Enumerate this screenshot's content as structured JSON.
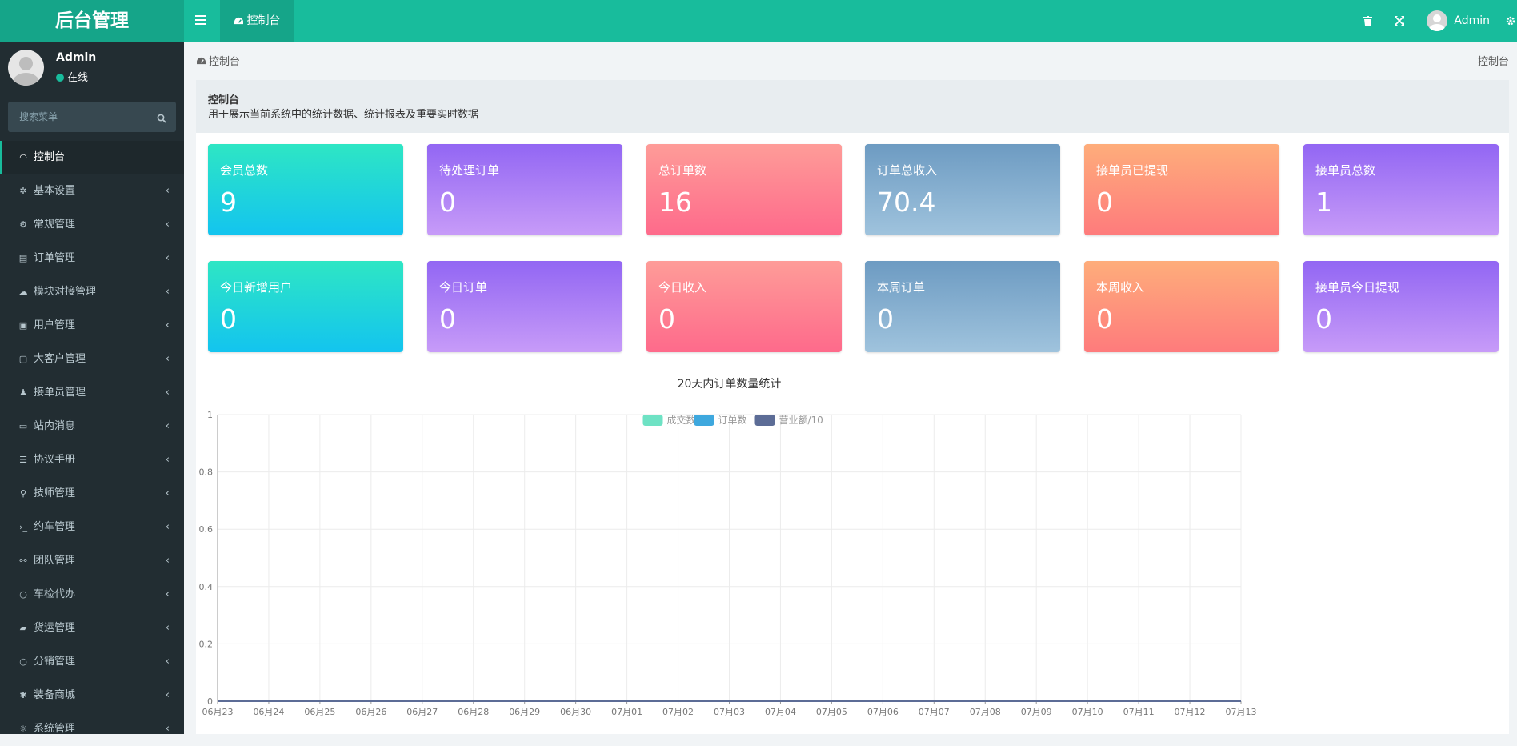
{
  "app": {
    "title": "后台管理"
  },
  "topbar": {
    "tab_label": "控制台",
    "user_name": "Admin"
  },
  "sidebar": {
    "user": {
      "name": "Admin",
      "status": "在线"
    },
    "search_placeholder": "搜索菜单",
    "items": [
      {
        "label": "控制台",
        "icon": "dashboard-icon",
        "active": true
      },
      {
        "label": "基本设置",
        "icon": "gear-icon"
      },
      {
        "label": "常规管理",
        "icon": "cogs-icon"
      },
      {
        "label": "订单管理",
        "icon": "book-icon"
      },
      {
        "label": "模块对接管理",
        "icon": "cloud-icon"
      },
      {
        "label": "用户管理",
        "icon": "user-card-icon"
      },
      {
        "label": "大客户管理",
        "icon": "portrait-icon"
      },
      {
        "label": "接单员管理",
        "icon": "users-icon"
      },
      {
        "label": "站内消息",
        "icon": "message-icon"
      },
      {
        "label": "协议手册",
        "icon": "list-icon"
      },
      {
        "label": "技师管理",
        "icon": "walker-icon"
      },
      {
        "label": "约车管理",
        "icon": "terminal-icon"
      },
      {
        "label": "团队管理",
        "icon": "handshake-icon"
      },
      {
        "label": "车检代办",
        "icon": "circle-icon"
      },
      {
        "label": "货运管理",
        "icon": "truck-icon"
      },
      {
        "label": "分销管理",
        "icon": "circle-icon"
      },
      {
        "label": "装备商城",
        "icon": "bug-icon"
      },
      {
        "label": "系统管理",
        "icon": "sun-icon"
      }
    ]
  },
  "breadcrumb": {
    "left": "控制台",
    "right": "控制台"
  },
  "panel": {
    "title": "控制台",
    "description": "用于展示当前系统中的统计数据、统计报表及重要实时数据"
  },
  "stats_row1": [
    {
      "label": "会员总数",
      "value": "9",
      "color": "#13c4ef"
    },
    {
      "label": "待处理订单",
      "value": "0",
      "color": "#9266f3"
    },
    {
      "label": "总订单数",
      "value": "16",
      "color": "#fe6a8b"
    },
    {
      "label": "订单总收入",
      "value": "70.4",
      "color": "#6d9bc2"
    },
    {
      "label": "接单员已提现",
      "value": "0",
      "color": "#fe7b7c"
    },
    {
      "label": "接单员总数",
      "value": "1",
      "color": "#9266f3"
    }
  ],
  "stats_row2": [
    {
      "label": "今日新增用户",
      "value": "0"
    },
    {
      "label": "今日订单",
      "value": "0"
    },
    {
      "label": "今日收入",
      "value": "0"
    },
    {
      "label": "本周订单",
      "value": "0"
    },
    {
      "label": "本周收入",
      "value": "0"
    },
    {
      "label": "接单员今日提现",
      "value": "0"
    }
  ],
  "chart_data": {
    "type": "line",
    "title": "20天内订单数量统计",
    "categories": [
      "06月23",
      "06月24",
      "06月25",
      "06月26",
      "06月27",
      "06月28",
      "06月29",
      "06月30",
      "07月01",
      "07月02",
      "07月03",
      "07月04",
      "07月05",
      "07月06",
      "07月07",
      "07月08",
      "07月09",
      "07月10",
      "07月11",
      "07月12",
      "07月13"
    ],
    "series": [
      {
        "name": "成交数",
        "color": "#6ee2c4",
        "values": [
          0,
          0,
          0,
          0,
          0,
          0,
          0,
          0,
          0,
          0,
          0,
          0,
          0,
          0,
          0,
          0,
          0,
          0,
          0,
          0,
          0
        ]
      },
      {
        "name": "订单数",
        "color": "#3ea8de",
        "values": [
          0,
          0,
          0,
          0,
          0,
          0,
          0,
          0,
          0,
          0,
          0,
          0,
          0,
          0,
          0,
          0,
          0,
          0,
          0,
          0,
          0
        ]
      },
      {
        "name": "营业额/10",
        "color": "#5c6c96",
        "values": [
          0,
          0,
          0,
          0,
          0,
          0,
          0,
          0,
          0,
          0,
          0,
          0,
          0,
          0,
          0,
          0,
          0,
          0,
          0,
          0,
          0
        ]
      }
    ],
    "yticks": [
      "0",
      "0.2",
      "0.4",
      "0.6",
      "0.8",
      "1"
    ],
    "ylim": [
      0,
      1
    ],
    "legend": "top-center",
    "grid": true,
    "xlabel": "",
    "ylabel": ""
  }
}
